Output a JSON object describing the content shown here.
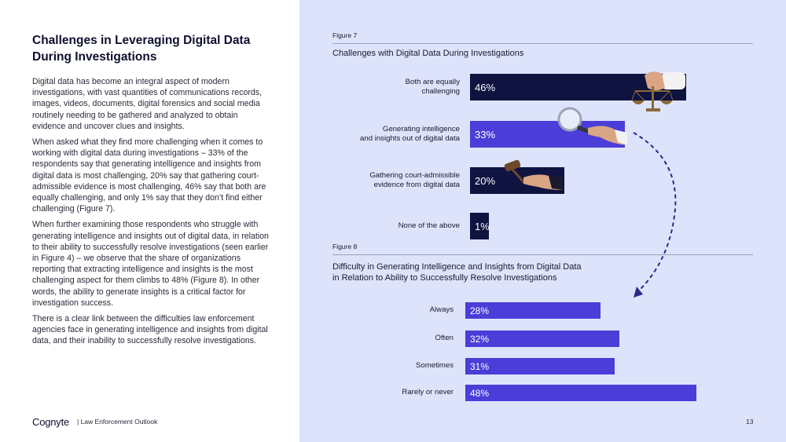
{
  "left": {
    "title": "Challenges in Leveraging Digital Data During Investigations",
    "paragraphs": [
      "Digital data has become an integral aspect of modern investigations, with vast quantities of communications records, images, videos, documents, digital forensics and social media routinely needing to be gathered and analyzed to obtain evidence and uncover clues and insights.",
      "When asked what they find more challenging when it comes to working with digital data during investigations – 33% of the respondents say that generating intelligence and insights from digital data is most challenging, 20% say that gathering court-admissible evidence is most challenging, 46% say that both are equally challenging, and only 1% say that they don’t find either challenging (Figure 7).",
      "When further examining those respondents who struggle with generating intelligence and insights out of digital data, in relation to their ability to successfully resolve investigations (seen earlier in Figure 4) – we observe that the share of organizations reporting that extracting intelligence and insights is the most challenging aspect for them climbs to 48% (Figure 8). In other words, the ability to generate insights is a critical factor for investigation success.",
      "There is a clear link between the difficulties law enforcement agencies face in generating intelligence and insights from digital data, and their inability to successfully resolve investigations."
    ]
  },
  "footer": {
    "logo": "Cognyte",
    "text": "| Law Enforcement Outlook",
    "page": "13"
  },
  "colors": {
    "right_bg": "#dde3fb",
    "navy": "#0f1340",
    "purple": "#4b3dd8"
  },
  "chart_data": [
    {
      "type": "bar",
      "orientation": "horizontal",
      "figure_label": "Figure 7",
      "title": "Challenges with Digital Data During Investigations",
      "categories": [
        [
          "Both are equally",
          "challenging"
        ],
        [
          "Generating intelligence",
          "and insights out of digital data"
        ],
        [
          "Gathering court-admissible",
          "evidence from digital data"
        ],
        [
          "None of the above"
        ]
      ],
      "values": [
        46,
        33,
        20,
        1
      ],
      "value_labels": [
        "46%",
        "33%",
        "20%",
        "1%"
      ],
      "bar_colors": [
        "#0f1340",
        "#4b3dd8",
        "#0f1340",
        "#0f1340"
      ],
      "icons": [
        "scales-of-justice-icon",
        "magnifying-glass-icon",
        "gavel-icon",
        ""
      ],
      "xlim": [
        0,
        100
      ]
    },
    {
      "type": "bar",
      "orientation": "horizontal",
      "figure_label": "Figure 8",
      "title_lines": [
        "Difficulty in Generating Intelligence and Insights from Digital Data",
        "in Relation to Ability to Successfully Resolve Investigations"
      ],
      "categories": [
        "Always",
        "Often",
        "Sometimes",
        "Rarely or never"
      ],
      "values": [
        28,
        32,
        31,
        48
      ],
      "value_labels": [
        "28%",
        "32%",
        "31%",
        "48%"
      ],
      "bar_color": "#4b3dd8",
      "xlim": [
        0,
        100
      ]
    }
  ]
}
